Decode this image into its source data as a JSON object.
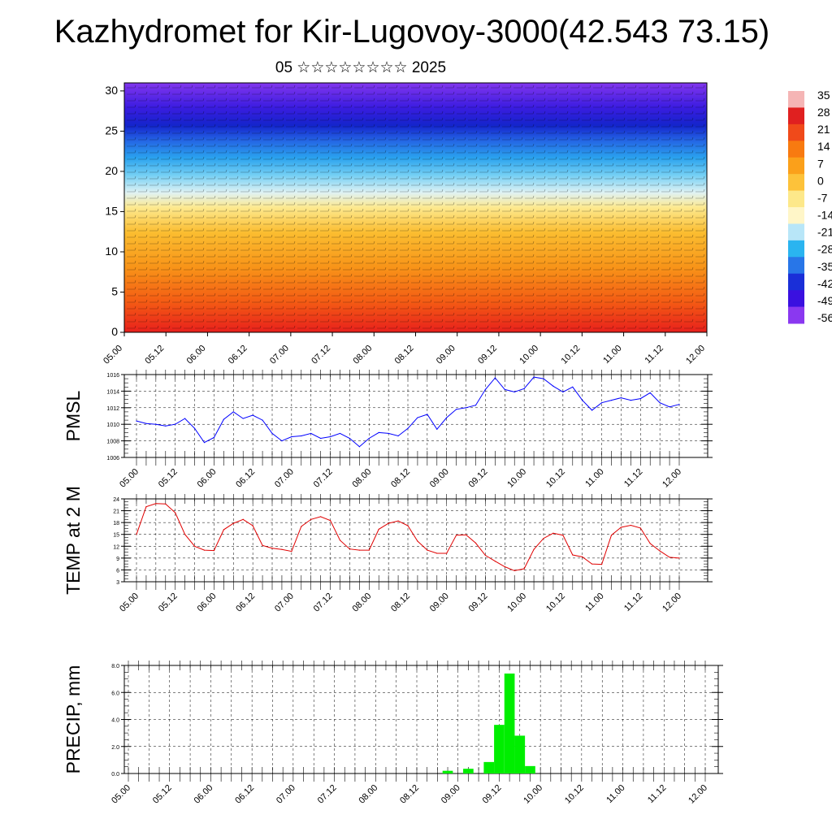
{
  "title": "Kazhydromet for Kir-Lugovoy-3000(42.543 73.15)",
  "subtitle": "05 ☆☆☆☆☆☆☆☆ 2025",
  "chart_data": [
    {
      "type": "heatmap",
      "name": "vertical cross-section with wind barbs",
      "y_ticks": [
        "0",
        "5",
        "10",
        "15",
        "20",
        "25",
        "30"
      ],
      "ylim": [
        0,
        31
      ],
      "x_ticks": [
        "05.00",
        "05.12",
        "06.00",
        "06.12",
        "07.00",
        "07.12",
        "08.00",
        "08.12",
        "09.00",
        "09.12",
        "10.00",
        "10.12",
        "11.00",
        "11.12",
        "12.00"
      ],
      "colorbar": {
        "labels": [
          "35",
          "28",
          "21",
          "14",
          "7",
          "0",
          "-7",
          "-14",
          "-21",
          "-28",
          "-35",
          "-42",
          "-49",
          "-56"
        ],
        "colors": [
          "#f5b5b5",
          "#e02020",
          "#f04a1a",
          "#f87a10",
          "#fba01a",
          "#fdc23a",
          "#fde88a",
          "#fff6c8",
          "#b8e6f8",
          "#2ab4f0",
          "#2876e8",
          "#1a2fd8",
          "#3a10e0",
          "#8a38f0"
        ]
      }
    },
    {
      "type": "line",
      "ylabel": "PMSL",
      "ylim": [
        1006,
        1016
      ],
      "y_ticks": [
        "1006",
        "1008",
        "1010",
        "1012",
        "1014",
        "1016"
      ],
      "x_ticks": [
        "05.00",
        "05.12",
        "06.00",
        "06.12",
        "07.00",
        "07.12",
        "08.00",
        "08.12",
        "09.00",
        "09.12",
        "10.00",
        "10.12",
        "11.00",
        "11.12",
        "12.00"
      ],
      "color": "#0000ff",
      "x": [
        0,
        3,
        6,
        9,
        12,
        15,
        18,
        21,
        24,
        27,
        30,
        33,
        36,
        39,
        42,
        45,
        48,
        51,
        54,
        57,
        60,
        63,
        66,
        69,
        72,
        75,
        78,
        81,
        84,
        87,
        90,
        93,
        96,
        99,
        102,
        105,
        108,
        111,
        114,
        117,
        120,
        123,
        126,
        129,
        132,
        135,
        138,
        141,
        144,
        147,
        150,
        153,
        156,
        159,
        162,
        165,
        168
      ],
      "values": [
        1010.4,
        1010.1,
        1010.0,
        1009.8,
        1010.0,
        1010.7,
        1009.5,
        1007.8,
        1008.4,
        1010.6,
        1011.5,
        1010.7,
        1011.1,
        1010.5,
        1008.9,
        1008.0,
        1008.5,
        1008.6,
        1008.9,
        1008.3,
        1008.5,
        1008.9,
        1008.3,
        1007.3,
        1008.3,
        1009.0,
        1008.9,
        1008.6,
        1009.5,
        1010.8,
        1011.2,
        1009.4,
        1010.8,
        1011.8,
        1012.0,
        1012.3,
        1014.2,
        1015.6,
        1014.2,
        1013.9,
        1014.3,
        1015.7,
        1015.5,
        1014.6,
        1013.9,
        1014.5,
        1012.9,
        1011.7,
        1012.6,
        1012.9,
        1013.2,
        1012.9,
        1013.1,
        1013.8,
        1012.6,
        1012.1,
        1012.4
      ]
    },
    {
      "type": "line",
      "ylabel": "TEMP at 2 M",
      "ylim": [
        3,
        24
      ],
      "y_ticks": [
        "3",
        "6",
        "9",
        "12",
        "15",
        "18",
        "21",
        "24"
      ],
      "x_ticks": [
        "05.00",
        "05.12",
        "06.00",
        "06.12",
        "07.00",
        "07.12",
        "08.00",
        "08.12",
        "09.00",
        "09.12",
        "10.00",
        "10.12",
        "11.00",
        "11.12",
        "12.00"
      ],
      "color": "#e00000",
      "x": [
        0,
        3,
        6,
        9,
        12,
        15,
        18,
        21,
        24,
        27,
        30,
        33,
        36,
        39,
        42,
        45,
        48,
        51,
        54,
        57,
        60,
        63,
        66,
        69,
        72,
        75,
        78,
        81,
        84,
        87,
        90,
        93,
        96,
        99,
        102,
        105,
        108,
        111,
        114,
        117,
        120,
        123,
        126,
        129,
        132,
        135,
        138,
        141,
        144,
        147,
        150,
        153,
        156,
        159,
        162,
        165,
        168
      ],
      "values": [
        15.0,
        22.0,
        22.8,
        22.7,
        20.5,
        15.0,
        12.0,
        11.0,
        10.9,
        16.2,
        17.8,
        18.8,
        17.2,
        12.2,
        11.5,
        11.2,
        10.7,
        17.0,
        18.8,
        19.5,
        18.5,
        13.5,
        11.3,
        11.0,
        11.0,
        16.3,
        17.8,
        18.4,
        17.2,
        13.3,
        11.0,
        10.2,
        10.2,
        14.8,
        14.9,
        12.8,
        9.7,
        8.2,
        6.8,
        5.8,
        6.3,
        11.2,
        14.0,
        15.3,
        14.8,
        9.8,
        9.3,
        7.5,
        7.4,
        14.8,
        16.8,
        17.3,
        16.6,
        12.7,
        10.8,
        9.2,
        9.0
      ]
    },
    {
      "type": "bar",
      "ylabel": "PRECIP, mm",
      "ylim": [
        0,
        8
      ],
      "y_ticks": [
        "0.0",
        "2.0",
        "4.0",
        "6.0",
        "8.0"
      ],
      "x_ticks": [
        "05.00",
        "05.12",
        "06.00",
        "06.12",
        "07.00",
        "07.12",
        "08.00",
        "08.12",
        "09.00",
        "09.12",
        "10.00",
        "10.12",
        "11.00",
        "11.12",
        "12.00"
      ],
      "color": "#00ee00",
      "x": [
        93,
        99,
        105,
        108,
        111,
        114,
        117
      ],
      "values": [
        0.2,
        0.35,
        0.85,
        3.6,
        7.4,
        2.8,
        0.55
      ]
    }
  ]
}
